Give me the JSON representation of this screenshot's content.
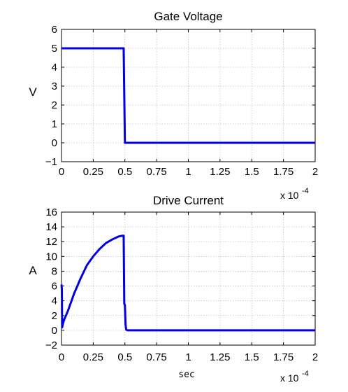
{
  "chart_data": [
    {
      "type": "line",
      "title": "Gate Voltage",
      "ylabel": "V",
      "xlabel": "",
      "xlim": [
        0,
        2
      ],
      "ylim": [
        -1,
        6
      ],
      "x_multiplier": "x 10",
      "x_multiplier_exp": "-4",
      "xticks": [
        0,
        0.25,
        0.5,
        0.75,
        1,
        1.25,
        1.5,
        1.75,
        2
      ],
      "xtick_labels": [
        "0",
        "0.25",
        "0.5",
        "0.75",
        "1",
        "1.25",
        "1.5",
        "1.75",
        "2"
      ],
      "yticks": [
        -1,
        0,
        1,
        2,
        3,
        4,
        5,
        6
      ],
      "ytick_labels": [
        "−1",
        "0",
        "1",
        "2",
        "3",
        "4",
        "5",
        "6"
      ],
      "grid": true,
      "series": [
        {
          "color": "#0000e0",
          "x": [
            0,
            0.49,
            0.5,
            2
          ],
          "y": [
            5,
            5,
            0,
            0
          ]
        }
      ]
    },
    {
      "type": "line",
      "title": "Drive Current",
      "ylabel": "A",
      "xlabel": "sec",
      "xlim": [
        0,
        2
      ],
      "ylim": [
        -2,
        16
      ],
      "x_multiplier": "x 10",
      "x_multiplier_exp": "-4",
      "xticks": [
        0,
        0.25,
        0.5,
        0.75,
        1,
        1.25,
        1.5,
        1.75,
        2
      ],
      "xtick_labels": [
        "0",
        "0.25",
        "0.5",
        "0.75",
        "1",
        "1.25",
        "1.5",
        "1.75",
        "2"
      ],
      "yticks": [
        -2,
        0,
        2,
        4,
        6,
        8,
        10,
        12,
        14,
        16
      ],
      "ytick_labels": [
        "−2",
        "0",
        "2",
        "4",
        "6",
        "8",
        "10",
        "12",
        "14",
        "16"
      ],
      "grid": true,
      "series": [
        {
          "color": "#0000e0",
          "x": [
            0,
            0.003,
            0.005,
            0.01,
            0.02,
            0.05,
            0.1,
            0.15,
            0.2,
            0.25,
            0.3,
            0.35,
            0.4,
            0.45,
            0.48,
            0.49,
            0.495,
            0.5,
            0.505,
            0.51,
            0.52,
            0.55,
            1.0,
            1.5,
            2
          ],
          "y": [
            6.2,
            5.6,
            0.4,
            0.8,
            1.4,
            2.6,
            5.0,
            7.0,
            8.8,
            10.0,
            11.0,
            11.8,
            12.3,
            12.7,
            12.8,
            12.8,
            3.6,
            3.4,
            0.8,
            0.1,
            0.0,
            0.0,
            0.0,
            0.0,
            0.0
          ]
        }
      ]
    }
  ]
}
